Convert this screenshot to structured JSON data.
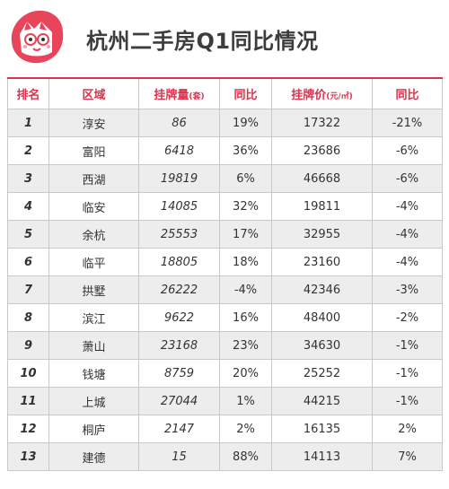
{
  "header": {
    "title": "杭州二手房Q1同比情况"
  },
  "colors": {
    "accent": "#d9334d",
    "row_alt": "#ededed"
  },
  "table": {
    "headers": {
      "rank": "排名",
      "district": "区域",
      "listings": "挂牌量",
      "listings_unit": "(套)",
      "yoy": "同比",
      "price": "挂牌价",
      "price_unit": "(元/㎡)",
      "yoy2": "同比"
    },
    "rows": [
      {
        "rank": "1",
        "district": "淳安",
        "listings": "86",
        "yoy": "19%",
        "price": "17322",
        "yoy2": "-21%"
      },
      {
        "rank": "2",
        "district": "富阳",
        "listings": "6418",
        "yoy": "36%",
        "price": "23686",
        "yoy2": "-6%"
      },
      {
        "rank": "3",
        "district": "西湖",
        "listings": "19819",
        "yoy": "6%",
        "price": "46668",
        "yoy2": "-6%"
      },
      {
        "rank": "4",
        "district": "临安",
        "listings": "14085",
        "yoy": "32%",
        "price": "19811",
        "yoy2": "-4%"
      },
      {
        "rank": "5",
        "district": "余杭",
        "listings": "25553",
        "yoy": "17%",
        "price": "32955",
        "yoy2": "-4%"
      },
      {
        "rank": "6",
        "district": "临平",
        "listings": "18805",
        "yoy": "18%",
        "price": "23160",
        "yoy2": "-4%"
      },
      {
        "rank": "7",
        "district": "拱墅",
        "listings": "26222",
        "yoy": "-4%",
        "price": "42346",
        "yoy2": "-3%"
      },
      {
        "rank": "8",
        "district": "滨江",
        "listings": "9622",
        "yoy": "16%",
        "price": "48400",
        "yoy2": "-2%"
      },
      {
        "rank": "9",
        "district": "萧山",
        "listings": "23168",
        "yoy": "23%",
        "price": "34630",
        "yoy2": "-1%"
      },
      {
        "rank": "10",
        "district": "钱塘",
        "listings": "8759",
        "yoy": "20%",
        "price": "25252",
        "yoy2": "-1%"
      },
      {
        "rank": "11",
        "district": "上城",
        "listings": "27044",
        "yoy": "1%",
        "price": "44215",
        "yoy2": "-1%"
      },
      {
        "rank": "12",
        "district": "桐庐",
        "listings": "2147",
        "yoy": "2%",
        "price": "16135",
        "yoy2": "2%"
      },
      {
        "rank": "13",
        "district": "建德",
        "listings": "15",
        "yoy": "88%",
        "price": "14113",
        "yoy2": "7%"
      }
    ]
  }
}
